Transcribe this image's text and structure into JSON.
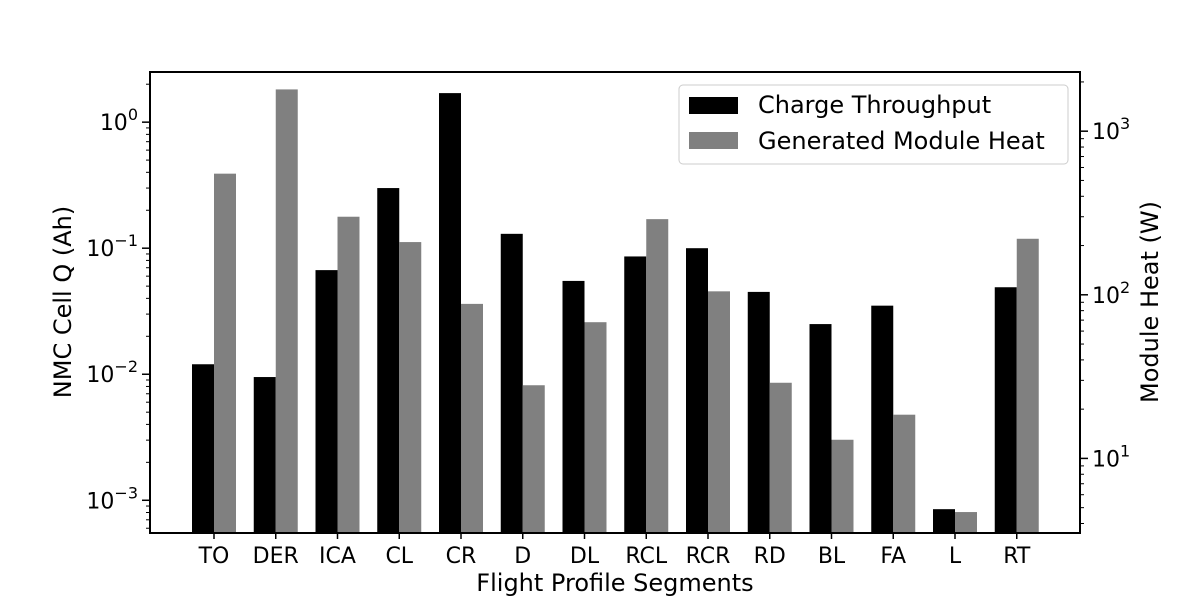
{
  "chart_data": {
    "type": "bar",
    "title": "",
    "xlabel": "Flight Profile Segments",
    "ylabel_left": "NMC Cell Q (Ah)",
    "ylabel_right": "Module Heat (W)",
    "yscale_left": "log",
    "yscale_right": "log",
    "ylim_left": [
      0.00055,
      2.5
    ],
    "ylim_right": [
      3.5,
      2300
    ],
    "left_ticks": [
      {
        "value": 0.001,
        "mantissa": "10",
        "exp": "−3"
      },
      {
        "value": 0.01,
        "mantissa": "10",
        "exp": "−2"
      },
      {
        "value": 0.1,
        "mantissa": "10",
        "exp": "−1"
      },
      {
        "value": 1,
        "mantissa": "10",
        "exp": "0"
      }
    ],
    "right_ticks": [
      {
        "value": 10,
        "mantissa": "10",
        "exp": "1"
      },
      {
        "value": 100,
        "mantissa": "10",
        "exp": "2"
      },
      {
        "value": 1000,
        "mantissa": "10",
        "exp": "3"
      }
    ],
    "grid": false,
    "legend_position": "top-right",
    "categories": [
      "TO",
      "DER",
      "ICA",
      "CL",
      "CR",
      "D",
      "DL",
      "RCL",
      "RCR",
      "RD",
      "BL",
      "FA",
      "L",
      "RT"
    ],
    "series": [
      {
        "name": "Charge Throughput",
        "axis": "left",
        "color": "#000000",
        "values": [
          0.012,
          0.0095,
          0.067,
          0.3,
          1.7,
          0.13,
          0.055,
          0.086,
          0.1,
          0.045,
          0.025,
          0.035,
          0.00085,
          0.049
        ]
      },
      {
        "name": "Generated Module Heat",
        "axis": "right",
        "color": "#808080",
        "values": [
          550,
          1800,
          300,
          210,
          88,
          28,
          68,
          290,
          105,
          29,
          13,
          18.5,
          4.7,
          220
        ]
      }
    ]
  }
}
